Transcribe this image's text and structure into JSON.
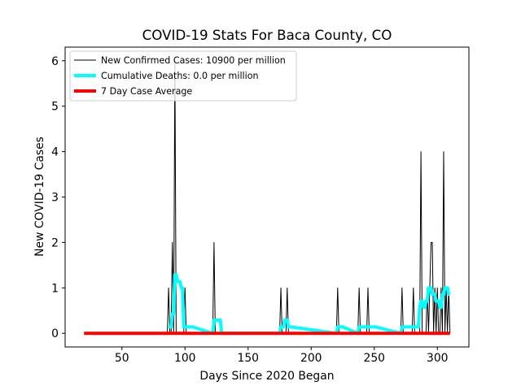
{
  "chart_data": {
    "type": "line",
    "title": "COVID-19 Stats For Baca County, CO",
    "xlabel": "Days Since 2020 Began",
    "ylabel": "New COVID-19 Cases",
    "xlim": [
      5,
      325
    ],
    "ylim": [
      -0.3,
      6.3
    ],
    "xticks": [
      50,
      100,
      150,
      200,
      250,
      300
    ],
    "yticks": [
      0,
      1,
      2,
      3,
      4,
      5,
      6
    ],
    "grid": false,
    "legend_position": "top-left",
    "series": [
      {
        "name": "New Confirmed Cases: 10900 per million",
        "color": "#000000",
        "line_width": 1,
        "x": [
          20,
          86,
          87,
          88,
          89,
          90,
          91,
          92,
          93,
          94,
          99,
          100,
          101,
          122,
          123,
          124,
          175,
          176,
          177,
          180,
          181,
          182,
          220,
          221,
          222,
          237,
          238,
          239,
          244,
          245,
          246,
          271,
          272,
          273,
          280,
          281,
          282,
          286,
          287,
          288,
          291,
          292,
          293,
          294,
          295,
          296,
          297,
          298,
          299,
          300,
          301,
          302,
          303,
          304,
          305,
          306,
          307,
          308,
          309,
          310
        ],
        "y": [
          0,
          0,
          1,
          0,
          0,
          2,
          0,
          6,
          0,
          0,
          0,
          1,
          0,
          0,
          2,
          0,
          0,
          1,
          0,
          0,
          1,
          0,
          0,
          1,
          0,
          0,
          1,
          0,
          0,
          1,
          0,
          0,
          1,
          0,
          0,
          1,
          0,
          0,
          4,
          0,
          0,
          1,
          0,
          1,
          2,
          2,
          0,
          1,
          0,
          1,
          0,
          0,
          1,
          0,
          4,
          0,
          1,
          0,
          1,
          0
        ]
      },
      {
        "name": "Cumulative Deaths: 0.0 per million",
        "color": "#00ffff",
        "line_width": 4,
        "x": [
          87,
          88,
          89,
          90,
          91,
          92,
          93,
          94,
          95,
          96,
          97,
          98,
          99,
          100,
          101,
          102,
          103,
          104,
          105,
          106,
          122,
          123,
          124,
          125,
          126,
          127,
          128,
          129,
          175,
          176,
          177,
          178,
          179,
          180,
          181,
          182,
          183,
          184,
          220,
          221,
          222,
          223,
          224,
          225,
          237,
          238,
          239,
          240,
          241,
          242,
          243,
          244,
          245,
          246,
          247,
          248,
          249,
          250,
          251,
          271,
          272,
          273,
          274,
          275,
          276,
          277,
          278,
          279,
          280,
          281,
          282,
          283,
          284,
          285,
          286,
          287,
          288,
          289,
          290,
          291,
          292,
          293,
          294,
          295,
          296,
          297,
          298,
          299,
          300,
          301,
          302,
          303,
          304,
          305,
          306,
          307,
          308,
          309,
          310
        ],
        "y": [
          0.14,
          0.14,
          0.14,
          0.43,
          0.43,
          1.29,
          1.29,
          1.14,
          1.14,
          1.14,
          1.0,
          1.0,
          0.14,
          0.14,
          0.14,
          0.14,
          0.14,
          0.14,
          0.14,
          0.14,
          0.0,
          0.29,
          0.29,
          0.29,
          0.29,
          0.29,
          0.29,
          0.0,
          0.0,
          0.14,
          0.14,
          0.14,
          0.29,
          0.29,
          0.29,
          0.14,
          0.14,
          0.14,
          0.0,
          0.14,
          0.14,
          0.14,
          0.14,
          0.14,
          0.0,
          0.14,
          0.14,
          0.14,
          0.14,
          0.14,
          0.14,
          0.14,
          0.14,
          0.14,
          0.14,
          0.14,
          0.14,
          0.14,
          0.14,
          0.0,
          0.14,
          0.14,
          0.14,
          0.14,
          0.14,
          0.14,
          0.14,
          0.14,
          0.14,
          0.14,
          0.14,
          0.14,
          0.14,
          0.14,
          0.57,
          0.71,
          0.71,
          0.57,
          0.57,
          0.71,
          0.71,
          1.0,
          1.0,
          1.0,
          0.86,
          0.86,
          0.86,
          0.71,
          0.71,
          0.71,
          0.57,
          0.57,
          0.86,
          0.86,
          1.0,
          1.0,
          1.0,
          0.86,
          0.86
        ]
      },
      {
        "name": "7 Day Case Average",
        "color": "#ff0000",
        "line_width": 4,
        "x": [
          20,
          310
        ],
        "y": [
          0,
          0
        ]
      }
    ]
  }
}
